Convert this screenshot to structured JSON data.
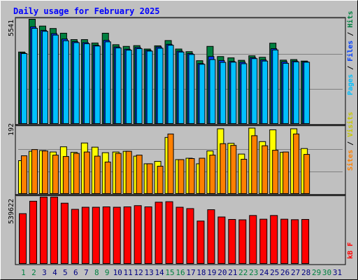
{
  "chart_data": [
    {
      "type": "bar",
      "title": "Daily usage for February 2025",
      "panel": "top",
      "ymax_label": "5541",
      "ylim": [
        0,
        5541
      ],
      "categories": [
        "1",
        "2",
        "3",
        "4",
        "5",
        "6",
        "7",
        "8",
        "9",
        "10",
        "11",
        "12",
        "13",
        "14",
        "15",
        "16",
        "17",
        "18",
        "19",
        "20",
        "21",
        "22",
        "23",
        "24",
        "25",
        "26",
        "27",
        "28",
        "29",
        "30",
        "31"
      ],
      "legend": [
        "Pages",
        "/",
        "Files",
        "/",
        "Hits"
      ],
      "series": [
        {
          "name": "Hits",
          "values": [
            3800,
            5541,
            5180,
            5050,
            4800,
            4460,
            4460,
            4280,
            4800,
            4190,
            4100,
            4140,
            3960,
            4130,
            4410,
            3960,
            3820,
            3340,
            4100,
            3560,
            3490,
            3360,
            3600,
            3520,
            4270,
            3370,
            3400,
            3320,
            0,
            0,
            0
          ]
        },
        {
          "name": "Files",
          "values": [
            3750,
            5140,
            4950,
            4780,
            4490,
            4350,
            4300,
            4160,
            4420,
            4070,
            3950,
            4040,
            3890,
            4070,
            4210,
            3850,
            3720,
            3190,
            3560,
            3350,
            3300,
            3260,
            3500,
            3380,
            3980,
            3280,
            3320,
            3280,
            0,
            0,
            0
          ]
        },
        {
          "name": "Pages",
          "values": [
            3720,
            5060,
            4900,
            4700,
            4400,
            4300,
            4240,
            4120,
            4340,
            4020,
            3900,
            3980,
            3850,
            4000,
            4160,
            3800,
            3670,
            3150,
            3400,
            3250,
            3260,
            3180,
            3450,
            3320,
            3910,
            3200,
            3280,
            3260,
            0,
            0,
            0
          ]
        }
      ]
    },
    {
      "type": "bar",
      "panel": "middle",
      "ymax_label": "192",
      "ylim": [
        0,
        192
      ],
      "categories": [
        "1",
        "2",
        "3",
        "4",
        "5",
        "6",
        "7",
        "8",
        "9",
        "10",
        "11",
        "12",
        "13",
        "14",
        "15",
        "16",
        "17",
        "18",
        "19",
        "20",
        "21",
        "22",
        "23",
        "24",
        "25",
        "26",
        "27",
        "28",
        "29",
        "30",
        "31"
      ],
      "legend": [
        "Sites",
        "/",
        "Visits"
      ],
      "series": [
        {
          "name": "Visits",
          "values": [
            95,
            122,
            124,
            120,
            135,
            119,
            146,
            134,
            118,
            120,
            122,
            108,
            86,
            93,
            162,
            98,
            102,
            86,
            123,
            187,
            145,
            114,
            189,
            150,
            184,
            119,
            187,
            130,
            0,
            0,
            0
          ]
        },
        {
          "name": "Sites",
          "values": [
            109,
            127,
            123,
            111,
            107,
            116,
            120,
            108,
            91,
            116,
            122,
            111,
            86,
            79,
            172,
            98,
            101,
            102,
            111,
            144,
            139,
            99,
            167,
            138,
            125,
            120,
            172,
            113,
            0,
            0,
            0
          ]
        }
      ]
    },
    {
      "type": "bar",
      "panel": "bottom",
      "ymax_label": "539622",
      "ylim": [
        0,
        539622
      ],
      "categories": [
        "1",
        "2",
        "3",
        "4",
        "5",
        "6",
        "7",
        "8",
        "9",
        "10",
        "11",
        "12",
        "13",
        "14",
        "15",
        "16",
        "17",
        "18",
        "19",
        "20",
        "21",
        "22",
        "23",
        "24",
        "25",
        "26",
        "27",
        "28",
        "29",
        "30",
        "31"
      ],
      "legend": [
        "kB F"
      ],
      "series": [
        {
          "name": "kB F",
          "values": [
            405000,
            506000,
            539622,
            539622,
            490000,
            440000,
            457000,
            457000,
            460000,
            457000,
            460000,
            470000,
            460000,
            498000,
            502000,
            457000,
            446000,
            345000,
            437000,
            378000,
            358000,
            355000,
            390000,
            360000,
            390000,
            360000,
            356000,
            358000,
            0,
            0,
            0
          ]
        }
      ]
    }
  ],
  "colors": {
    "background": "#c0c0c0",
    "title": "#0000ff",
    "hits": "#008040",
    "files": "#0040ff",
    "pages": "#00c0ff",
    "visits": "#ffff00",
    "sites": "#ff8000",
    "kbytes": "#ff0000",
    "weekend": "#008040",
    "weekday": "#000080"
  },
  "weekend_days": [
    1,
    2,
    8,
    9,
    15,
    16,
    22,
    23,
    29,
    30
  ]
}
